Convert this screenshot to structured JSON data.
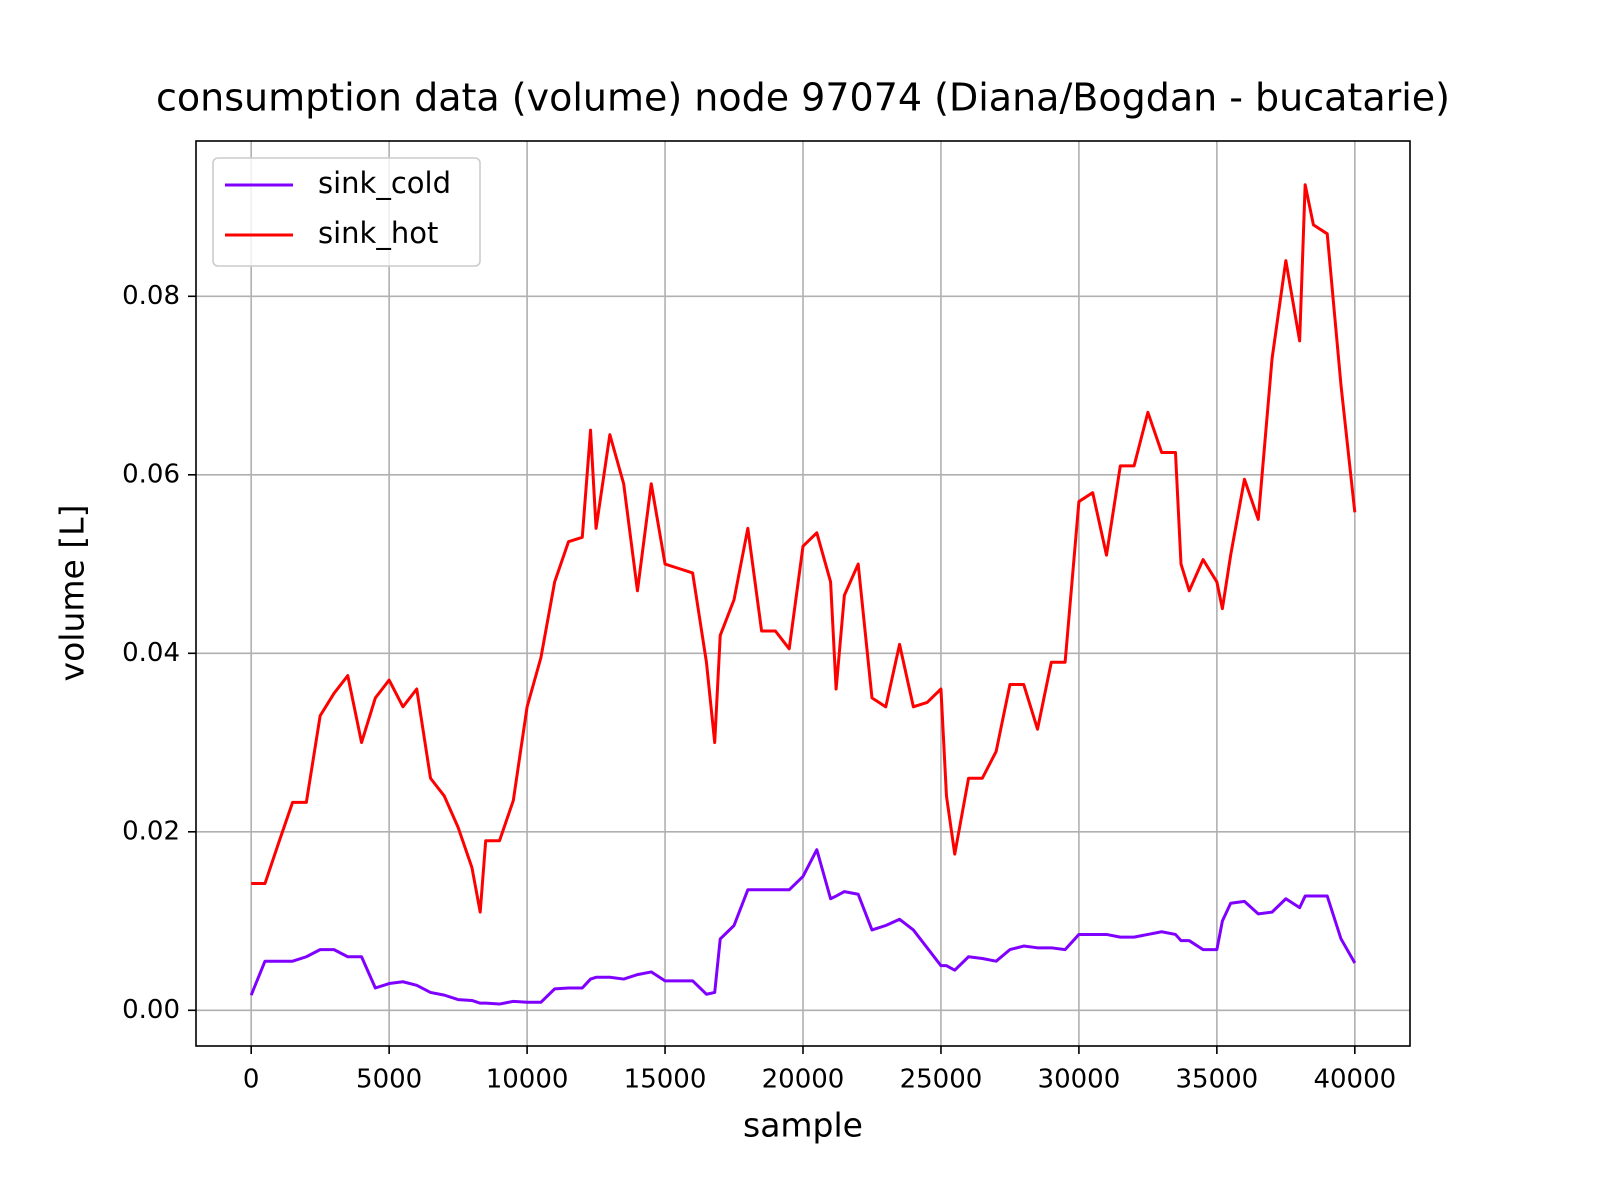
{
  "chart_data": {
    "type": "line",
    "title": "consumption data (volume) node 97074 (Diana/Bogdan - bucatarie)",
    "xlabel": "sample",
    "ylabel": "volume [L]",
    "x": [
      0,
      500,
      1000,
      1500,
      2000,
      2500,
      3000,
      3500,
      4000,
      4500,
      5000,
      5500,
      6000,
      6500,
      7000,
      7500,
      8000,
      8300,
      8500,
      9000,
      9500,
      10000,
      10500,
      11000,
      11500,
      12000,
      12300,
      12500,
      13000,
      13500,
      14000,
      14500,
      15000,
      15500,
      16000,
      16500,
      16800,
      17000,
      17500,
      18000,
      18500,
      19000,
      19500,
      20000,
      20500,
      21000,
      21200,
      21500,
      22000,
      22500,
      23000,
      23500,
      24000,
      24500,
      25000,
      25200,
      25500,
      26000,
      26500,
      27000,
      27500,
      28000,
      28500,
      29000,
      29500,
      30000,
      30500,
      31000,
      31500,
      32000,
      32500,
      33000,
      33500,
      33700,
      34000,
      34500,
      35000,
      35200,
      35500,
      36000,
      36500,
      37000,
      37500,
      38000,
      38200,
      38500,
      39000,
      39500,
      40000
    ],
    "series": [
      {
        "name": "sink_cold",
        "color": "#8000ff",
        "values": [
          0.0017,
          0.0055,
          0.0055,
          0.0055,
          0.006,
          0.0068,
          0.0068,
          0.006,
          0.006,
          0.0025,
          0.003,
          0.0032,
          0.0028,
          0.002,
          0.0017,
          0.0012,
          0.0011,
          0.0008,
          0.0008,
          0.0007,
          0.001,
          0.0009,
          0.0009,
          0.0024,
          0.0025,
          0.0025,
          0.0035,
          0.0037,
          0.0037,
          0.0035,
          0.004,
          0.0043,
          0.0033,
          0.0033,
          0.0033,
          0.0018,
          0.002,
          0.008,
          0.0095,
          0.0135,
          0.0135,
          0.0135,
          0.0135,
          0.015,
          0.018,
          0.0125,
          0.0128,
          0.0133,
          0.013,
          0.009,
          0.0095,
          0.0102,
          0.009,
          0.007,
          0.005,
          0.005,
          0.0045,
          0.006,
          0.0058,
          0.0055,
          0.0068,
          0.0072,
          0.007,
          0.007,
          0.0068,
          0.0085,
          0.0085,
          0.0085,
          0.0082,
          0.0082,
          0.0085,
          0.0088,
          0.0085,
          0.0078,
          0.0078,
          0.0068,
          0.0068,
          0.01,
          0.012,
          0.0122,
          0.0108,
          0.011,
          0.0125,
          0.0115,
          0.0128,
          0.0128,
          0.0128,
          0.008,
          0.0053
        ]
      },
      {
        "name": "sink_hot",
        "color": "#ff0000",
        "values": [
          0.0142,
          0.0142,
          0.0188,
          0.0233,
          0.0233,
          0.033,
          0.0355,
          0.0375,
          0.03,
          0.035,
          0.037,
          0.034,
          0.036,
          0.026,
          0.024,
          0.0205,
          0.016,
          0.011,
          0.019,
          0.019,
          0.0235,
          0.034,
          0.0395,
          0.048,
          0.0525,
          0.053,
          0.065,
          0.054,
          0.0645,
          0.059,
          0.047,
          0.059,
          0.05,
          0.0495,
          0.049,
          0.039,
          0.03,
          0.042,
          0.046,
          0.054,
          0.0425,
          0.0425,
          0.0405,
          0.052,
          0.0535,
          0.048,
          0.036,
          0.0465,
          0.05,
          0.035,
          0.034,
          0.041,
          0.034,
          0.0345,
          0.036,
          0.024,
          0.0175,
          0.026,
          0.026,
          0.029,
          0.0365,
          0.0365,
          0.0315,
          0.039,
          0.039,
          0.057,
          0.058,
          0.051,
          0.061,
          0.061,
          0.067,
          0.0625,
          0.0625,
          0.05,
          0.047,
          0.0505,
          0.048,
          0.045,
          0.051,
          0.0595,
          0.055,
          0.073,
          0.084,
          0.075,
          0.0925,
          0.088,
          0.087,
          0.07,
          0.0558
        ]
      }
    ],
    "xlim": [
      -2000,
      42000
    ],
    "ylim": [
      -0.004,
      0.0974
    ],
    "xticks": [
      0,
      5000,
      10000,
      15000,
      20000,
      25000,
      30000,
      35000,
      40000
    ],
    "yticks": [
      {
        "value": 0,
        "label": "0.00"
      },
      0.02,
      0.04,
      0.06,
      0.08
    ],
    "grid": true,
    "legend": "upper-left"
  }
}
